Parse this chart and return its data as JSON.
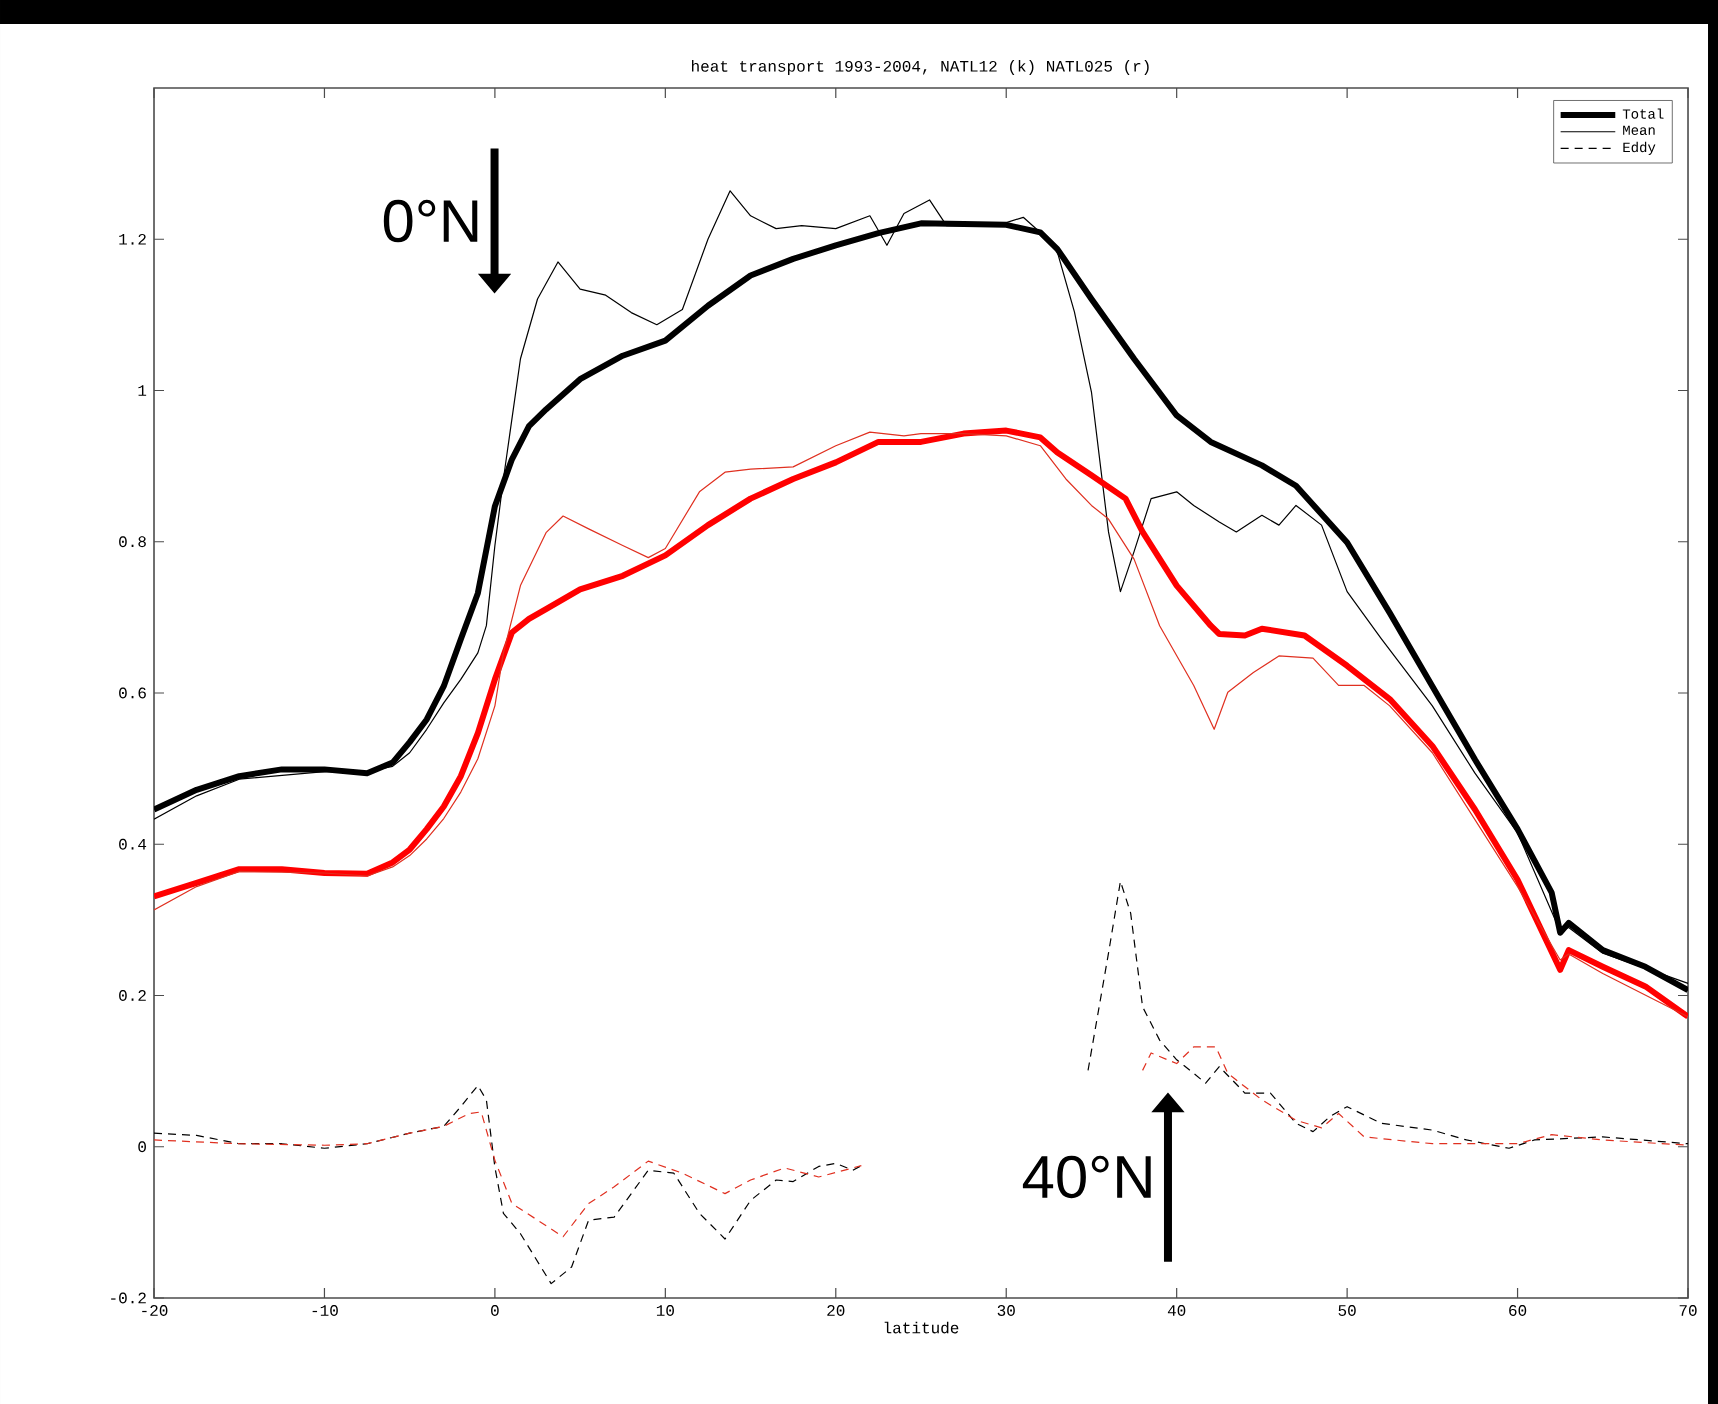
{
  "chart_data": {
    "type": "line",
    "title": "heat transport 1993-2004, NATL12 (k) NATL025 (r)",
    "xlabel": "latitude",
    "xlim": [
      -20,
      70
    ],
    "xticks": [
      -20,
      -10,
      0,
      10,
      20,
      30,
      40,
      50,
      60,
      70
    ],
    "ylim": [
      -0.2,
      1.4
    ],
    "yticks": [
      -0.2,
      0,
      0.2,
      0.4,
      0.6,
      0.8,
      1,
      1.2
    ],
    "legend": "top right",
    "marker": "none",
    "annotations": [
      "0°N",
      "40°N"
    ],
    "series": [
      {
        "name": "Total",
        "color": "#000000",
        "line_style": "solid",
        "x": [
          -20,
          -17.5,
          -15,
          -12.5,
          -10,
          -7.5,
          -6,
          -5,
          -4,
          -3,
          -2,
          -1,
          0,
          1,
          2,
          3,
          5,
          7.5,
          10,
          12.5,
          15,
          17.5,
          20,
          22.5,
          25,
          27.5,
          30,
          32,
          33,
          35,
          37.5,
          40,
          42,
          45,
          47,
          50,
          52.5,
          55,
          57.5,
          60,
          62,
          62.5,
          63,
          65,
          67.5,
          70
        ],
        "values": [
          0.446,
          0.472,
          0.49,
          0.499,
          0.499,
          0.494,
          0.508,
          0.535,
          0.565,
          0.609,
          0.671,
          0.732,
          0.847,
          0.909,
          0.953,
          0.975,
          1.015,
          1.046,
          1.066,
          1.112,
          1.152,
          1.174,
          1.192,
          1.208,
          1.221,
          1.22,
          1.219,
          1.209,
          1.187,
          1.121,
          1.042,
          0.967,
          0.932,
          0.901,
          0.874,
          0.799,
          0.706,
          0.609,
          0.512,
          0.42,
          0.336,
          0.283,
          0.296,
          0.26,
          0.238,
          0.207
        ]
      },
      {
        "name": "Mean",
        "color": "#000000",
        "line_style": "solid",
        "x": [
          -20,
          -17.5,
          -15,
          -10,
          -7.5,
          -6,
          -5,
          -4,
          -3,
          -2,
          -1,
          -0.5,
          0,
          0.5,
          1.5,
          2.5,
          3.7,
          5,
          6.5,
          8,
          9.5,
          11,
          12.5,
          13.8,
          15,
          16.5,
          18,
          20,
          22,
          23,
          24,
          25.5,
          26.5,
          28.5,
          30,
          31,
          32,
          33,
          34,
          35,
          36,
          36.7,
          37.5,
          38.5,
          40,
          41,
          42.5,
          43.5,
          45,
          46,
          47,
          48.5,
          50,
          52,
          55,
          57.5,
          60,
          62.5,
          63,
          65,
          70
        ],
        "values": [
          0.433,
          0.464,
          0.486,
          0.496,
          0.496,
          0.503,
          0.521,
          0.552,
          0.587,
          0.618,
          0.653,
          0.689,
          0.795,
          0.883,
          1.042,
          1.121,
          1.17,
          1.134,
          1.126,
          1.103,
          1.087,
          1.107,
          1.2,
          1.264,
          1.231,
          1.214,
          1.218,
          1.214,
          1.231,
          1.192,
          1.234,
          1.252,
          1.218,
          1.218,
          1.222,
          1.229,
          1.209,
          1.183,
          1.104,
          0.998,
          0.813,
          0.734,
          0.787,
          0.857,
          0.866,
          0.848,
          0.826,
          0.813,
          0.835,
          0.822,
          0.848,
          0.822,
          0.734,
          0.672,
          0.583,
          0.494,
          0.415,
          0.285,
          0.29,
          0.256,
          0.216
        ]
      },
      {
        "name": "Eddy",
        "color": "#000000",
        "line_style": "dashed",
        "x": [
          -20,
          -17.5,
          -15,
          -12.5,
          -10,
          -7.5,
          -5,
          -3,
          -2,
          -1,
          -0.5,
          0,
          0.5,
          1.5,
          3.3,
          4.5,
          5.5,
          7,
          9,
          10.5,
          12,
          13.5,
          15,
          16.5,
          17.5,
          19,
          20,
          21,
          21.5,
          28,
          34.8,
          36,
          36.7,
          37.3,
          38,
          39,
          40,
          41,
          41.7,
          42.5,
          44,
          45.5,
          47,
          48,
          49,
          50,
          52,
          55,
          57,
          59.5,
          61,
          65,
          70
        ],
        "values": [
          0.018,
          0.015,
          0.004,
          0.004,
          -0.002,
          0.004,
          0.018,
          0.027,
          0.053,
          0.081,
          0.062,
          -0.027,
          -0.088,
          -0.115,
          -0.181,
          -0.159,
          -0.097,
          -0.093,
          -0.031,
          -0.035,
          -0.088,
          -0.122,
          -0.071,
          -0.044,
          -0.046,
          -0.026,
          -0.022,
          -0.031,
          -0.025,
          null,
          0.101,
          0.256,
          0.351,
          0.309,
          0.185,
          0.141,
          0.115,
          0.097,
          0.084,
          0.106,
          0.071,
          0.071,
          0.031,
          0.02,
          0.04,
          0.053,
          0.031,
          0.022,
          0.009,
          -0.002,
          0.009,
          0.013,
          0.004
        ]
      },
      {
        "color": "#ff0000",
        "line_style": "solid",
        "x": [
          -20,
          -17.5,
          -15,
          -12.5,
          -10,
          -7.5,
          -6,
          -5,
          -4,
          -3,
          -2,
          -1,
          0,
          1,
          2,
          3,
          5,
          7.5,
          10,
          12.5,
          15,
          17.5,
          20,
          22.5,
          25,
          27.5,
          30,
          32,
          33,
          35,
          37,
          38,
          40,
          42,
          42.5,
          44,
          45,
          47.5,
          50,
          52.5,
          55,
          57.5,
          60,
          62.5,
          63,
          65,
          67.5,
          70
        ],
        "values": [
          0.331,
          0.349,
          0.367,
          0.367,
          0.362,
          0.361,
          0.376,
          0.393,
          0.42,
          0.45,
          0.49,
          0.547,
          0.618,
          0.68,
          0.698,
          0.711,
          0.737,
          0.755,
          0.782,
          0.822,
          0.857,
          0.883,
          0.905,
          0.932,
          0.932,
          0.943,
          0.947,
          0.938,
          0.918,
          0.888,
          0.857,
          0.813,
          0.742,
          0.689,
          0.678,
          0.676,
          0.685,
          0.676,
          0.636,
          0.592,
          0.53,
          0.446,
          0.353,
          0.234,
          0.26,
          0.238,
          0.212,
          0.172
        ]
      },
      {
        "color": "#e03020",
        "line_style": "solid",
        "x": [
          -20,
          -17.5,
          -15,
          -10,
          -7.5,
          -6,
          -5,
          -4,
          -3,
          -2,
          -1,
          0,
          0.5,
          1.5,
          3,
          4,
          5.5,
          7.5,
          9,
          10,
          12,
          13.5,
          15,
          17.5,
          20,
          22,
          24,
          25,
          27.5,
          30,
          32,
          33.5,
          35,
          36,
          37.5,
          39,
          41,
          42.2,
          43,
          44.5,
          46,
          48,
          49.5,
          51,
          52.5,
          55,
          60,
          62.5,
          63,
          65,
          70
        ],
        "values": [
          0.313,
          0.344,
          0.364,
          0.362,
          0.358,
          0.37,
          0.385,
          0.407,
          0.434,
          0.469,
          0.513,
          0.583,
          0.653,
          0.742,
          0.812,
          0.834,
          0.817,
          0.795,
          0.779,
          0.791,
          0.866,
          0.892,
          0.896,
          0.899,
          0.927,
          0.945,
          0.94,
          0.943,
          0.943,
          0.94,
          0.927,
          0.883,
          0.848,
          0.83,
          0.777,
          0.689,
          0.61,
          0.552,
          0.601,
          0.627,
          0.649,
          0.646,
          0.61,
          0.61,
          0.583,
          0.521,
          0.344,
          0.247,
          0.255,
          0.229,
          0.172
        ]
      },
      {
        "color": "#e03020",
        "line_style": "dashed",
        "x": [
          -20,
          -15,
          -10,
          -7.5,
          -5,
          -3,
          -1.5,
          -0.8,
          0,
          1,
          2.5,
          4,
          5.5,
          7,
          9,
          11,
          13.5,
          15,
          17,
          19,
          21.5,
          30,
          38,
          38.5,
          40,
          41,
          42.3,
          43,
          45,
          47,
          48.5,
          49.5,
          51,
          55,
          60,
          62,
          65,
          70
        ],
        "values": [
          0.009,
          0.004,
          0.002,
          0.004,
          0.018,
          0.027,
          0.044,
          0.046,
          -0.018,
          -0.075,
          -0.097,
          -0.119,
          -0.075,
          -0.053,
          -0.019,
          -0.035,
          -0.062,
          -0.044,
          -0.028,
          -0.04,
          -0.025,
          null,
          0.101,
          0.124,
          0.11,
          0.132,
          0.132,
          0.097,
          0.062,
          0.035,
          0.025,
          0.044,
          0.013,
          0.004,
          0.004,
          0.016,
          0.009,
          0.002
        ]
      }
    ]
  }
}
